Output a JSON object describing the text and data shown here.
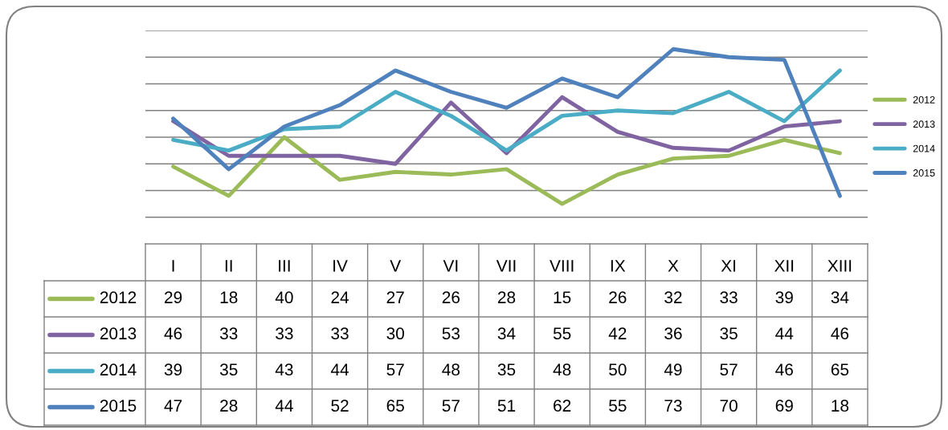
{
  "chart_data": {
    "type": "line",
    "categories": [
      "I",
      "II",
      "III",
      "IV",
      "V",
      "VI",
      "VII",
      "VIII",
      "IX",
      "X",
      "XI",
      "XII",
      "XIII"
    ],
    "series": [
      {
        "name": "2012",
        "color": "#9bbb59",
        "values": [
          29,
          18,
          40,
          24,
          27,
          26,
          28,
          15,
          26,
          32,
          33,
          39,
          34
        ]
      },
      {
        "name": "2013",
        "color": "#8064a2",
        "values": [
          46,
          33,
          33,
          33,
          30,
          53,
          34,
          55,
          42,
          36,
          35,
          44,
          46
        ]
      },
      {
        "name": "2014",
        "color": "#4bacc6",
        "values": [
          39,
          35,
          43,
          44,
          57,
          48,
          35,
          48,
          50,
          49,
          57,
          46,
          65
        ]
      },
      {
        "name": "2015",
        "color": "#4f81bd",
        "values": [
          47,
          28,
          44,
          52,
          65,
          57,
          51,
          62,
          55,
          73,
          70,
          69,
          18
        ]
      }
    ],
    "ylim": [
      0,
      80
    ],
    "yticks": [
      {
        "value": 10,
        "label": null
      },
      {
        "value": 20,
        "label": null
      },
      {
        "value": 30,
        "label": null
      },
      {
        "value": 40,
        "label": null
      },
      {
        "value": 50,
        "label": null
      },
      {
        "value": 60,
        "label": null
      },
      {
        "value": 70,
        "label": null
      },
      {
        "value": 80,
        "label": null
      }
    ],
    "grid": "y",
    "legend": "right",
    "tick_labels": "x",
    "data_labels": true,
    "marker": "none",
    "line_style": "solid"
  }
}
